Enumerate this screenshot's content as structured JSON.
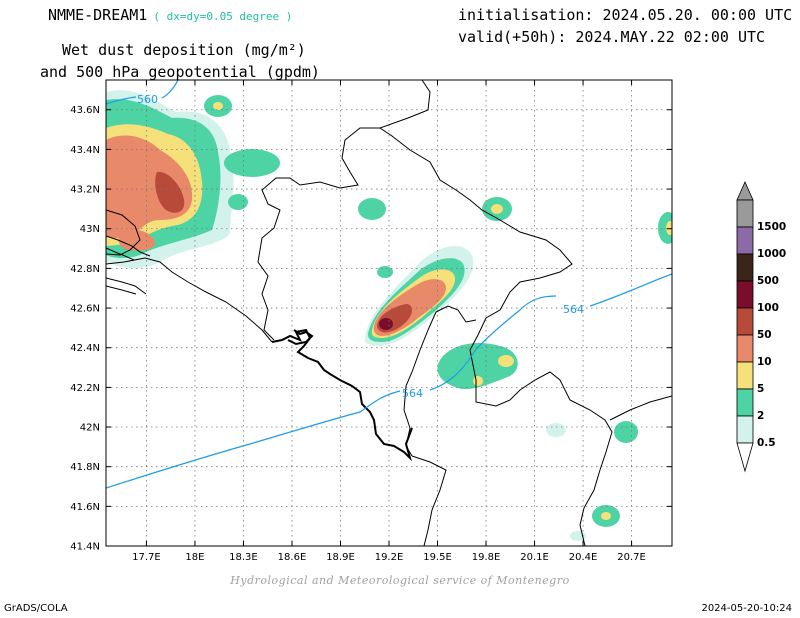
{
  "header": {
    "model": "NMME-DREAM1",
    "grid_note": "( dx=dy=0.05 degree )",
    "title_line1": "Wet dust deposition (mg/m²)",
    "title_line2": "and 500 hPa geopotential (gpdm)",
    "initialisation": "initialisation: 2024.05.20. 00:00 UTC",
    "valid": "valid(+50h): 2024.MAY.22 02:00 UTC"
  },
  "credit": "Hydrological and Meteorological service of Montenegro",
  "footer": {
    "left": "GrADS/COLA",
    "right": "2024-05-20-10:24"
  },
  "map": {
    "lon_range": [
      17.45,
      20.95
    ],
    "lat_range": [
      41.4,
      43.75
    ],
    "x_ticks": [
      "17.7E",
      "18E",
      "18.3E",
      "18.6E",
      "18.9E",
      "19.2E",
      "19.5E",
      "19.8E",
      "20.1E",
      "20.4E",
      "20.7E"
    ],
    "y_ticks": [
      "43.6N",
      "43.4N",
      "43.2N",
      "43N",
      "42.8N",
      "42.6N",
      "42.4N",
      "42.2N",
      "42N",
      "41.8N",
      "41.6N",
      "41.4N"
    ],
    "contour_labels": [
      "560",
      "564",
      "564"
    ],
    "contour_color": "#1e9be8"
  },
  "legend": {
    "labels": [
      "1500",
      "1000",
      "500",
      "100",
      "50",
      "10",
      "5",
      "2",
      "0.5"
    ],
    "colors": [
      "#9a9a9a",
      "#8c6aa8",
      "#3b2418",
      "#7a0d2b",
      "#b84a3a",
      "#e8896a",
      "#f5e07a",
      "#4ed4a4",
      "#d4f2ec"
    ]
  }
}
